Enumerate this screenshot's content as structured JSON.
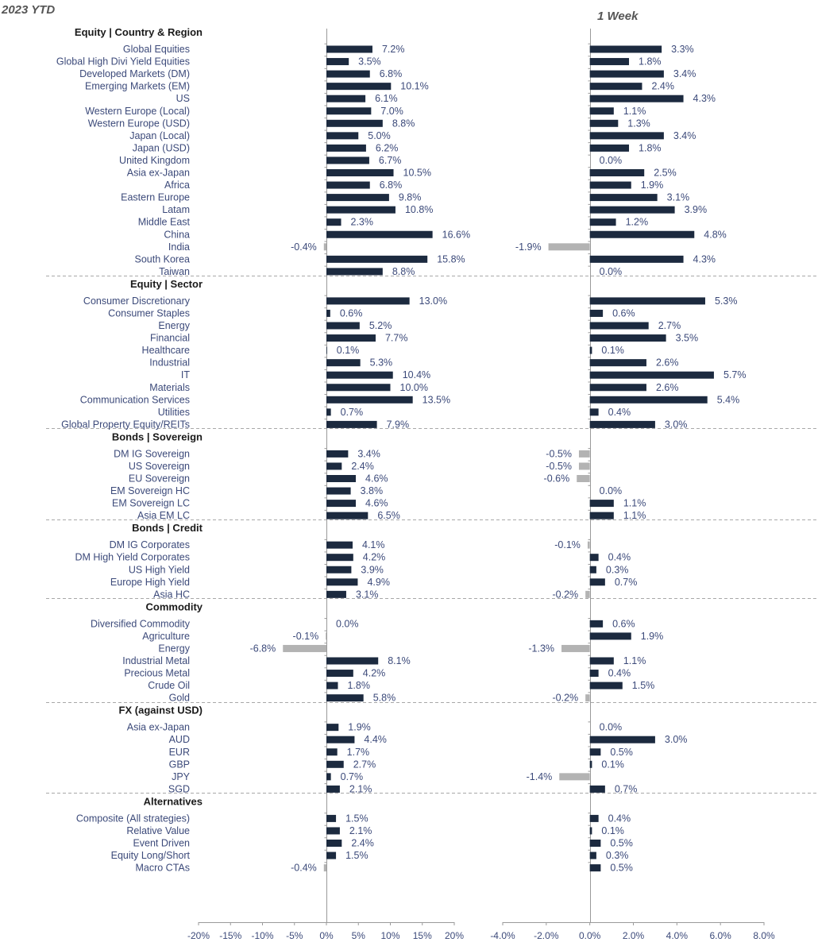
{
  "colors": {
    "positive": "#1c2a3f",
    "negative": "#b3b3b3",
    "axis": "#9a9a9a",
    "separator": "#a8a8a8",
    "text": "#3c4a7a"
  },
  "chart_data": [
    {
      "type": "bar",
      "orientation": "horizontal",
      "title": "2023 YTD",
      "xlim": [
        -0.2,
        0.2
      ],
      "tick_labels": [
        "-20%",
        "-15%",
        "-10%",
        "-5%",
        "0%",
        "5%",
        "10%",
        "15%",
        "20%"
      ],
      "grid": false,
      "sections": [
        {
          "name": "Equity | Country & Region",
          "categories": [
            "Global Equities",
            "Global High Divi Yield Equities",
            "Developed Markets (DM)",
            "Emerging Markets (EM)",
            "US",
            "Western Europe (Local)",
            "Western Europe (USD)",
            "Japan (Local)",
            "Japan (USD)",
            "United Kingdom",
            "Asia ex-Japan",
            "Africa",
            "Eastern Europe",
            "Latam",
            "Middle East",
            "China",
            "India",
            "South Korea",
            "Taiwan"
          ],
          "values": [
            0.072,
            0.035,
            0.068,
            0.101,
            0.061,
            0.07,
            0.088,
            0.05,
            0.062,
            0.067,
            0.105,
            0.068,
            0.098,
            0.108,
            0.023,
            0.166,
            -0.004,
            0.158,
            0.088
          ],
          "labels": [
            "7.2%",
            "3.5%",
            "6.8%",
            "10.1%",
            "6.1%",
            "7.0%",
            "8.8%",
            "5.0%",
            "6.2%",
            "6.7%",
            "10.5%",
            "6.8%",
            "9.8%",
            "10.8%",
            "2.3%",
            "16.6%",
            "-0.4%",
            "15.8%",
            "8.8%"
          ]
        },
        {
          "name": "Equity | Sector",
          "categories": [
            "Consumer Discretionary",
            "Consumer Staples",
            "Energy",
            "Financial",
            "Healthcare",
            "Industrial",
            "IT",
            "Materials",
            "Communication Services",
            "Utilities",
            "Global Property Equity/REITs"
          ],
          "values": [
            0.13,
            0.006,
            0.052,
            0.077,
            0.001,
            0.053,
            0.104,
            0.1,
            0.135,
            0.007,
            0.079
          ],
          "labels": [
            "13.0%",
            "0.6%",
            "5.2%",
            "7.7%",
            "0.1%",
            "5.3%",
            "10.4%",
            "10.0%",
            "13.5%",
            "0.7%",
            "7.9%"
          ]
        },
        {
          "name": "Bonds | Sovereign",
          "categories": [
            "DM IG Sovereign",
            "US Sovereign",
            "EU Sovereign",
            "EM Sovereign HC",
            "EM Sovereign LC",
            "Asia EM LC"
          ],
          "values": [
            0.034,
            0.024,
            0.046,
            0.038,
            0.046,
            0.065
          ],
          "labels": [
            "3.4%",
            "2.4%",
            "4.6%",
            "3.8%",
            "4.6%",
            "6.5%"
          ]
        },
        {
          "name": "Bonds | Credit",
          "categories": [
            "DM IG Corporates",
            "DM High Yield Corporates",
            "US High Yield",
            "Europe High Yield",
            "Asia HC"
          ],
          "values": [
            0.041,
            0.042,
            0.039,
            0.049,
            0.031
          ],
          "labels": [
            "4.1%",
            "4.2%",
            "3.9%",
            "4.9%",
            "3.1%"
          ]
        },
        {
          "name": "Commodity",
          "categories": [
            "Diversified Commodity",
            "Agriculture",
            "Energy",
            "Industrial Metal",
            "Precious Metal",
            "Crude Oil",
            "Gold"
          ],
          "values": [
            0.0,
            -0.001,
            -0.068,
            0.081,
            0.042,
            0.018,
            0.058
          ],
          "labels": [
            "0.0%",
            "-0.1%",
            "-6.8%",
            "8.1%",
            "4.2%",
            "1.8%",
            "5.8%"
          ]
        },
        {
          "name": "FX (against USD)",
          "categories": [
            "Asia ex-Japan",
            "AUD",
            "EUR",
            "GBP",
            "JPY",
            "SGD"
          ],
          "values": [
            0.019,
            0.044,
            0.017,
            0.027,
            0.007,
            0.021
          ],
          "labels": [
            "1.9%",
            "4.4%",
            "1.7%",
            "2.7%",
            "0.7%",
            "2.1%"
          ]
        },
        {
          "name": "Alternatives",
          "categories": [
            "Composite (All strategies)",
            "Relative Value",
            "Event Driven",
            "Equity Long/Short",
            "Macro CTAs"
          ],
          "values": [
            0.015,
            0.021,
            0.024,
            0.015,
            -0.004
          ],
          "labels": [
            "1.5%",
            "2.1%",
            "2.4%",
            "1.5%",
            "-0.4%"
          ]
        }
      ]
    },
    {
      "type": "bar",
      "orientation": "horizontal",
      "title": "1 Week",
      "xlim": [
        -0.04,
        0.08
      ],
      "tick_labels": [
        "-4.0%",
        "-2.0%",
        "0.0%",
        "2.0%",
        "4.0%",
        "6.0%",
        "8.0%"
      ],
      "grid": false,
      "sections": [
        {
          "name": "Equity | Country & Region",
          "values": [
            0.033,
            0.018,
            0.034,
            0.024,
            0.043,
            0.011,
            0.013,
            0.034,
            0.018,
            0.0,
            0.025,
            0.019,
            0.031,
            0.039,
            0.012,
            0.048,
            -0.019,
            0.043,
            0.0
          ],
          "labels": [
            "3.3%",
            "1.8%",
            "3.4%",
            "2.4%",
            "4.3%",
            "1.1%",
            "1.3%",
            "3.4%",
            "1.8%",
            "0.0%",
            "2.5%",
            "1.9%",
            "3.1%",
            "3.9%",
            "1.2%",
            "4.8%",
            "-1.9%",
            "4.3%",
            "0.0%"
          ]
        },
        {
          "name": "Equity | Sector",
          "values": [
            0.053,
            0.006,
            0.027,
            0.035,
            0.001,
            0.026,
            0.057,
            0.026,
            0.054,
            0.004,
            0.03
          ],
          "labels": [
            "5.3%",
            "0.6%",
            "2.7%",
            "3.5%",
            "0.1%",
            "2.6%",
            "5.7%",
            "2.6%",
            "5.4%",
            "0.4%",
            "3.0%"
          ]
        },
        {
          "name": "Bonds | Sovereign",
          "values": [
            -0.005,
            -0.005,
            -0.006,
            0.0,
            0.011,
            0.011
          ],
          "labels": [
            "-0.5%",
            "-0.5%",
            "-0.6%",
            "0.0%",
            "1.1%",
            "1.1%"
          ]
        },
        {
          "name": "Bonds | Credit",
          "values": [
            -0.001,
            0.004,
            0.003,
            0.007,
            -0.002
          ],
          "labels": [
            "-0.1%",
            "0.4%",
            "0.3%",
            "0.7%",
            "-0.2%"
          ]
        },
        {
          "name": "Commodity",
          "values": [
            0.006,
            0.019,
            -0.013,
            0.011,
            0.004,
            0.015,
            -0.002
          ],
          "labels": [
            "0.6%",
            "1.9%",
            "-1.3%",
            "1.1%",
            "0.4%",
            "1.5%",
            "-0.2%"
          ]
        },
        {
          "name": "FX (against USD)",
          "values": [
            0.0,
            0.03,
            0.005,
            0.001,
            -0.014,
            0.007
          ],
          "labels": [
            "0.0%",
            "3.0%",
            "0.5%",
            "0.1%",
            "-1.4%",
            "0.7%"
          ]
        },
        {
          "name": "Alternatives",
          "values": [
            0.004,
            0.001,
            0.005,
            0.003,
            0.005
          ],
          "labels": [
            "0.4%",
            "0.1%",
            "0.5%",
            "0.3%",
            "0.5%"
          ]
        }
      ]
    }
  ]
}
